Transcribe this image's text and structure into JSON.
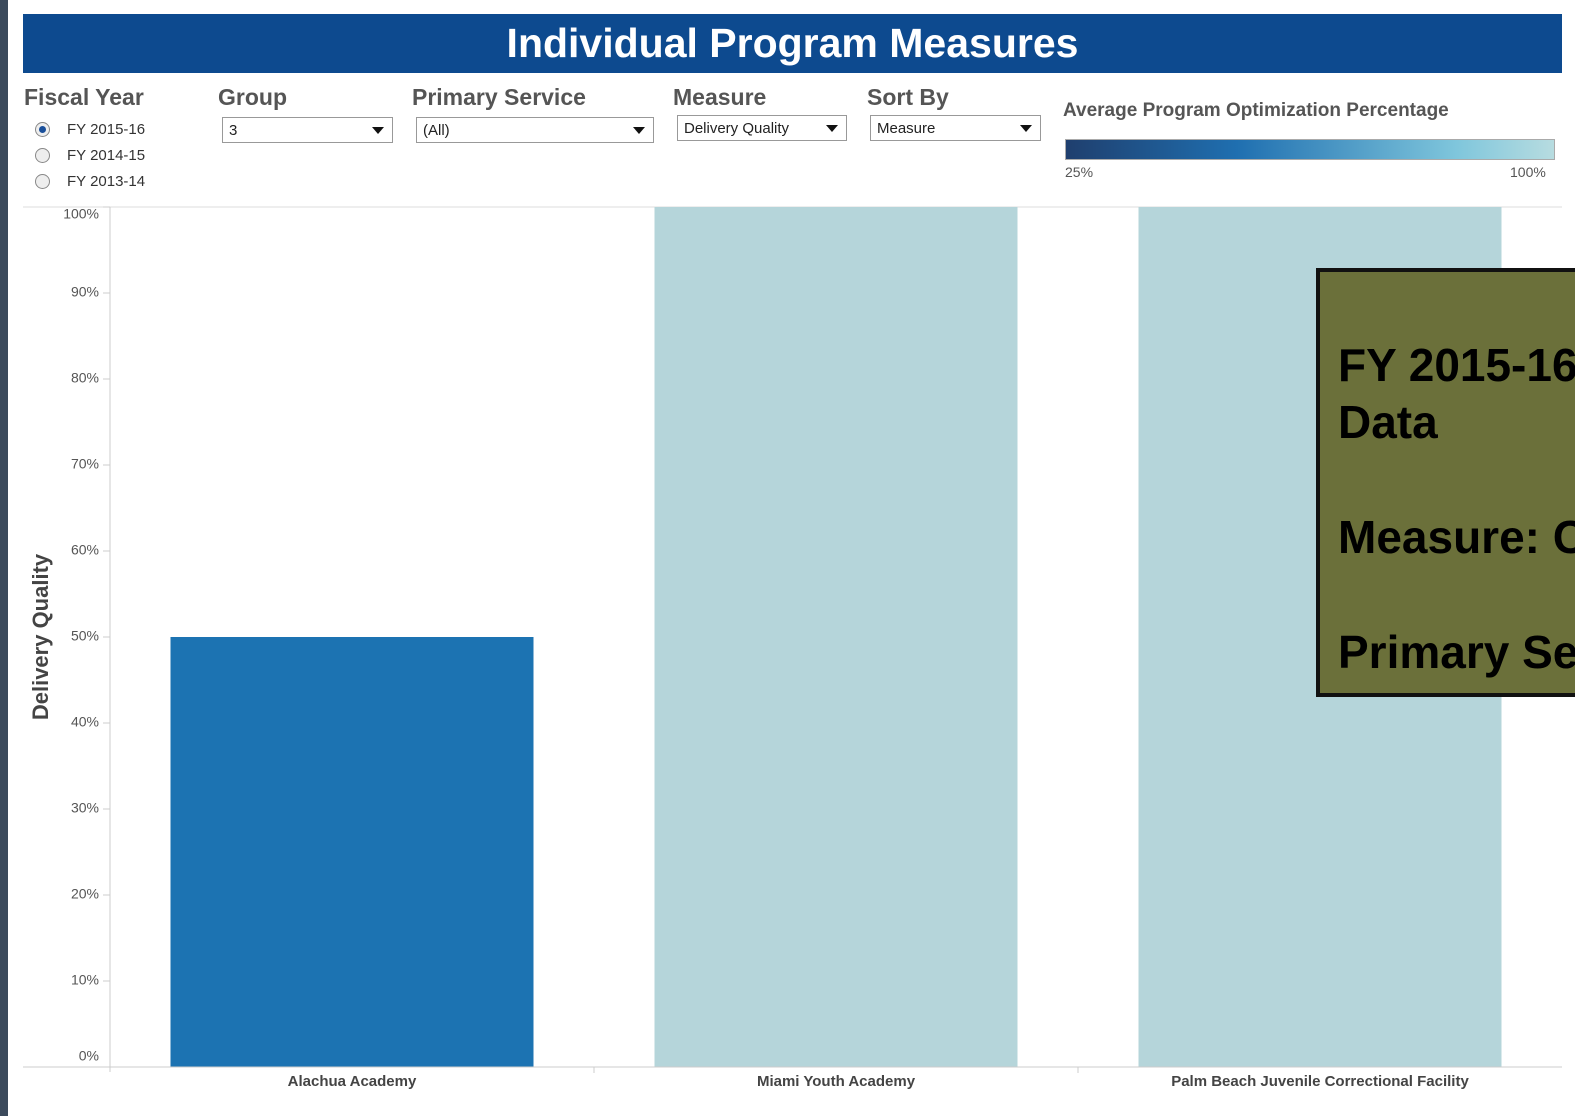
{
  "header": {
    "title": "Individual Program Measures"
  },
  "filters": {
    "fiscal_year": {
      "label": "Fiscal Year",
      "options": [
        "FY 2015-16",
        "FY 2014-15",
        "FY 2013-14"
      ],
      "selected": 0
    },
    "group": {
      "label": "Group",
      "value": "3"
    },
    "primary_service": {
      "label": "Primary Service",
      "value": "(All)"
    },
    "measure": {
      "label": "Measure",
      "value": "Delivery Quality"
    },
    "sort_by": {
      "label": "Sort By",
      "value": "Measure"
    }
  },
  "legend": {
    "title": "Average Program Optimization Percentage",
    "min_label": "25%",
    "max_label": "100%"
  },
  "tooltip": {
    "lines": [
      "FY 2015-16",
      "Data",
      "Measure: C",
      "Primary Se"
    ]
  },
  "chart_data": {
    "type": "bar",
    "y_label": "Delivery Quality",
    "categories": [
      "Alachua Academy",
      "Miami Youth Academy",
      "Palm Beach Juvenile Correctional Facility"
    ],
    "values": [
      50,
      100,
      100
    ],
    "colors": [
      "#1c73b2",
      "#b5d5da",
      "#b5d5da"
    ],
    "ylim": [
      0,
      100
    ],
    "yticks": [
      {
        "value": 0,
        "label": "0%"
      },
      {
        "value": 10,
        "label": "10%"
      },
      {
        "value": 20,
        "label": "20%"
      },
      {
        "value": 30,
        "label": "30%"
      },
      {
        "value": 40,
        "label": "40%"
      },
      {
        "value": 50,
        "label": "50%"
      },
      {
        "value": 60,
        "label": "60%"
      },
      {
        "value": 70,
        "label": "70%"
      },
      {
        "value": 80,
        "label": "80%"
      },
      {
        "value": 90,
        "label": "90%"
      },
      {
        "value": 100,
        "label": "100%"
      }
    ]
  }
}
